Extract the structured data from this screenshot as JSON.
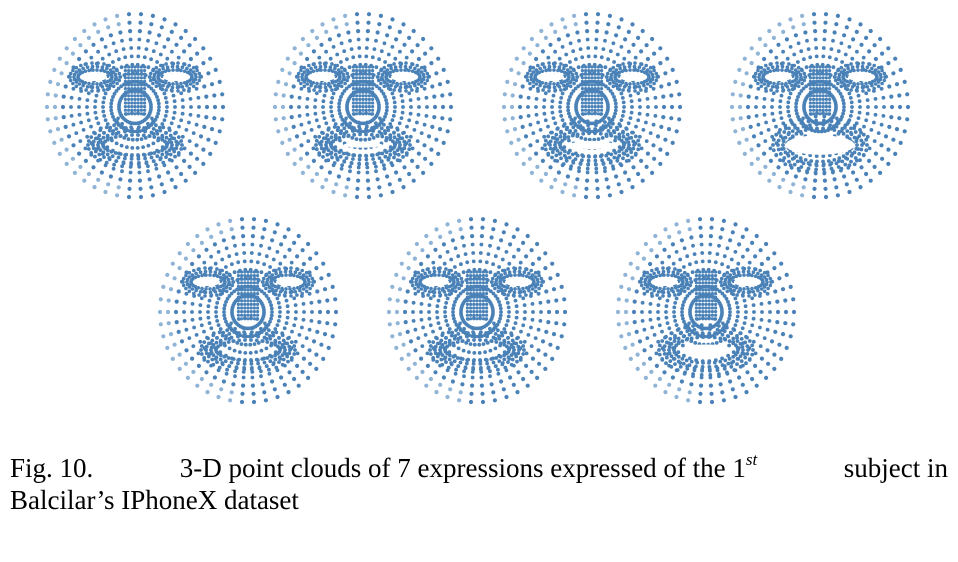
{
  "figure": {
    "point_color": "#4a82b8",
    "point_color_light": "#8fb4d6",
    "faces": [
      {
        "expression_index": 1,
        "mouth_open": 0.0
      },
      {
        "expression_index": 2,
        "mouth_open": 0.05
      },
      {
        "expression_index": 3,
        "mouth_open": 0.15
      },
      {
        "expression_index": 4,
        "mouth_open": 0.55
      },
      {
        "expression_index": 5,
        "mouth_open": 0.0
      },
      {
        "expression_index": 6,
        "mouth_open": 0.0
      },
      {
        "expression_index": 7,
        "mouth_open": 0.25
      }
    ]
  },
  "caption": {
    "label": "Fig. 10.",
    "text_before_sup": "3-D point clouds of 7 expressions expressed of the 1",
    "sup": "st",
    "text_after_sup": "subject in",
    "line2": "Balcilar’s IPhoneX dataset"
  }
}
